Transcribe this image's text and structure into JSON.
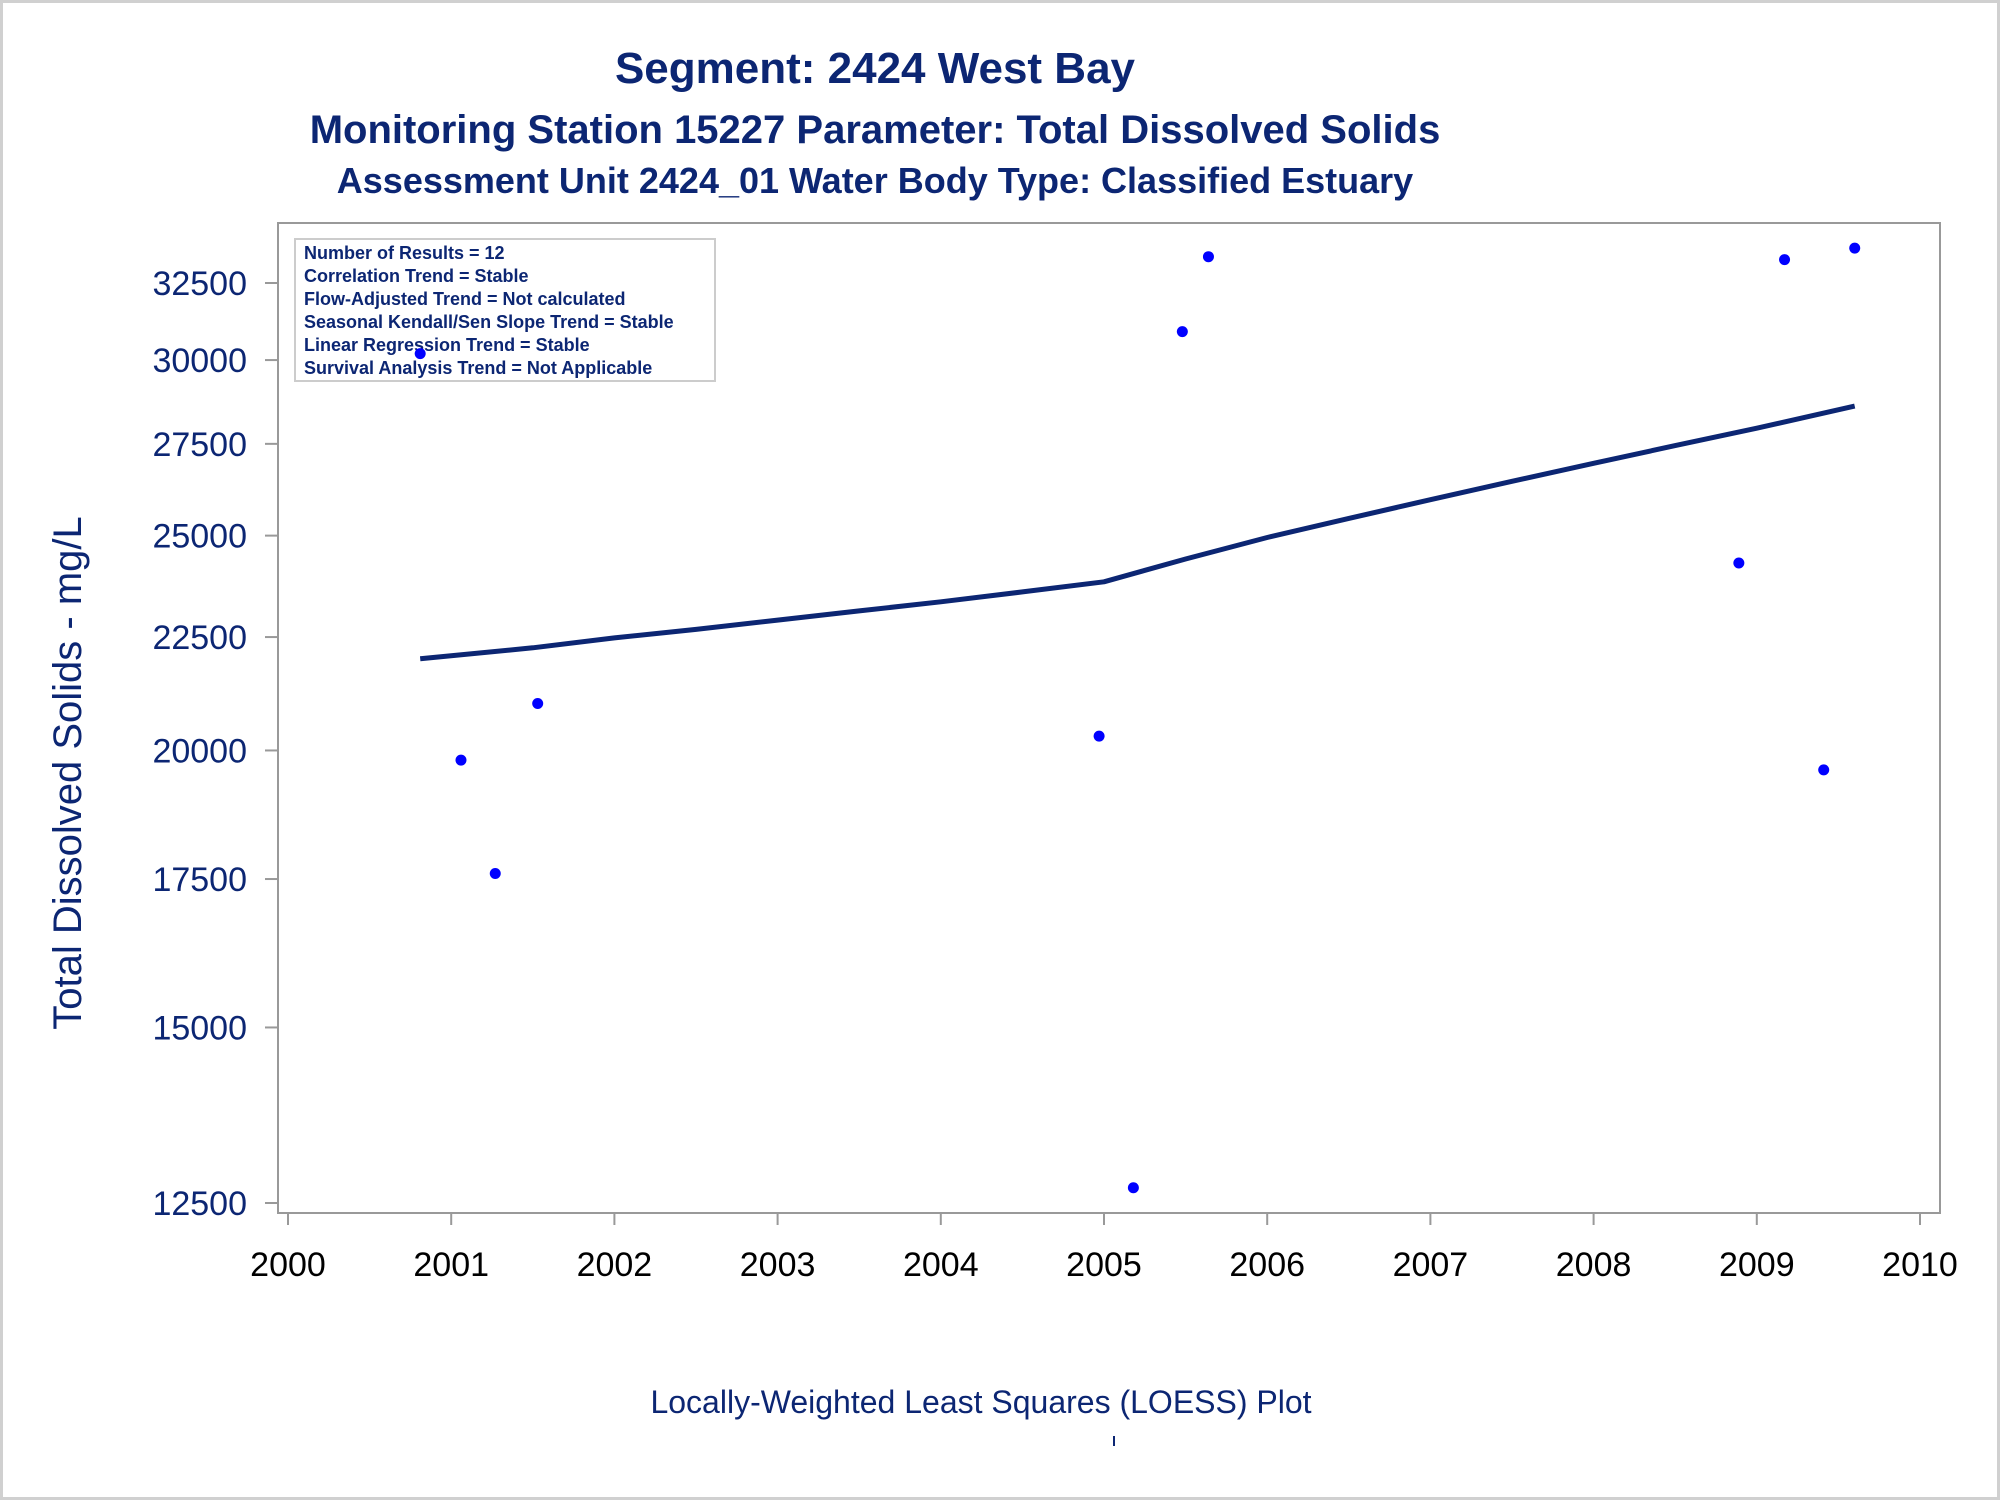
{
  "titles": {
    "line1": "Segment: 2424  West Bay",
    "line2": "Monitoring Station 15227 Parameter: Total Dissolved Solids",
    "line3": "Assessment Unit 2424_01   Water Body Type: Classified Estuary"
  },
  "footnote": "Locally-Weighted Least Squares (LOESS) Plot",
  "stats_box": {
    "lines": [
      "Number of Results = 12",
      "Correlation Trend = Stable",
      "Flow-Adjusted Trend = Not calculated",
      "Seasonal Kendall/Sen Slope Trend = Stable",
      "Linear Regression Trend = Stable",
      "Survival Analysis Trend = Not Applicable"
    ]
  },
  "colors": {
    "text": "#0c2673",
    "points": "#0000ff",
    "loess_line": "#0c2673",
    "axis": "#999999"
  },
  "chart_data": {
    "type": "scatter",
    "title": "Segment: 2424  West Bay",
    "xlabel": "",
    "ylabel": "Total Dissolved Solids - mg/L",
    "y_scale": "log",
    "xlim": [
      2000,
      2010
    ],
    "ylim": [
      12200,
      34400
    ],
    "x_ticks": [
      "2000",
      "2001",
      "2002",
      "2003",
      "2004",
      "2005",
      "2006",
      "2007",
      "2008",
      "2009",
      "2010"
    ],
    "y_ticks": [
      "12500",
      "15000",
      "17500",
      "20000",
      "22500",
      "25000",
      "27500",
      "30000",
      "32500"
    ],
    "grid": false,
    "legend": "none",
    "series": [
      {
        "type": "scatter",
        "points": [
          {
            "x": 2000.81,
            "y": 30200
          },
          {
            "x": 2001.06,
            "y": 19800
          },
          {
            "x": 2001.27,
            "y": 17600
          },
          {
            "x": 2001.53,
            "y": 21000
          },
          {
            "x": 2004.97,
            "y": 20300
          },
          {
            "x": 2005.18,
            "y": 12700
          },
          {
            "x": 2005.48,
            "y": 30900
          },
          {
            "x": 2005.64,
            "y": 33400
          },
          {
            "x": 2008.89,
            "y": 24300
          },
          {
            "x": 2009.17,
            "y": 33300
          },
          {
            "x": 2009.41,
            "y": 19600
          },
          {
            "x": 2009.6,
            "y": 33700
          }
        ]
      },
      {
        "type": "line",
        "points": [
          {
            "x": 2000.81,
            "y": 22000
          },
          {
            "x": 2001.5,
            "y": 22250
          },
          {
            "x": 2002.0,
            "y": 22480
          },
          {
            "x": 2002.5,
            "y": 22680
          },
          {
            "x": 2003.0,
            "y": 22900
          },
          {
            "x": 2003.5,
            "y": 23120
          },
          {
            "x": 2004.0,
            "y": 23340
          },
          {
            "x": 2004.5,
            "y": 23580
          },
          {
            "x": 2005.0,
            "y": 23830
          },
          {
            "x": 2005.5,
            "y": 24400
          },
          {
            "x": 2006.0,
            "y": 24950
          },
          {
            "x": 2006.5,
            "y": 25450
          },
          {
            "x": 2007.0,
            "y": 25950
          },
          {
            "x": 2007.5,
            "y": 26450
          },
          {
            "x": 2008.0,
            "y": 26950
          },
          {
            "x": 2008.5,
            "y": 27450
          },
          {
            "x": 2009.0,
            "y": 27950
          },
          {
            "x": 2009.6,
            "y": 28600
          }
        ]
      }
    ]
  }
}
